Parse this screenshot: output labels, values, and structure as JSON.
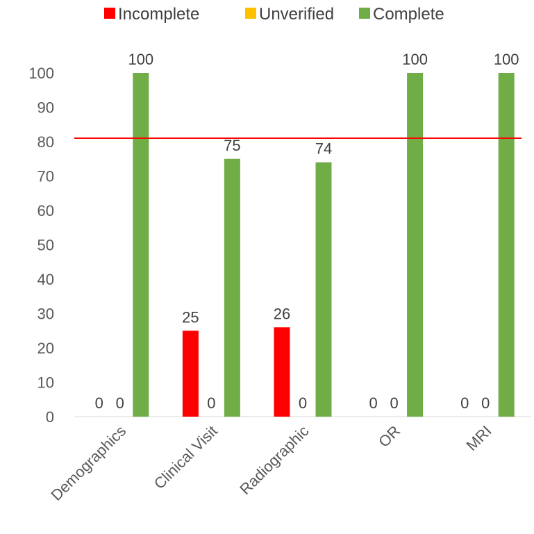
{
  "chart_data": {
    "type": "bar",
    "categories": [
      "Demographics",
      "Clinical Visit",
      "Radiographic",
      "OR",
      "MRI"
    ],
    "series": [
      {
        "name": "Incomplete",
        "color": "#ff0000",
        "values": [
          0,
          25,
          26,
          0,
          0
        ]
      },
      {
        "name": "Unverified",
        "color": "#ffc000",
        "values": [
          0,
          0,
          0,
          0,
          0
        ]
      },
      {
        "name": "Complete",
        "color": "#70ad47",
        "values": [
          100,
          75,
          74,
          100,
          100
        ]
      }
    ],
    "data_labels": [
      [
        "0",
        "25",
        "26",
        "0",
        "0"
      ],
      [
        "0",
        "0",
        "0",
        "0",
        "0"
      ],
      [
        "100",
        "75",
        "74",
        "100",
        "100"
      ]
    ],
    "ylim": [
      0,
      100
    ],
    "yticks": [
      0,
      10,
      20,
      30,
      40,
      50,
      60,
      70,
      80,
      90,
      100
    ],
    "reference_line": {
      "value": 81,
      "color": "#ff0000"
    },
    "legend_position": "top",
    "grid": false
  }
}
